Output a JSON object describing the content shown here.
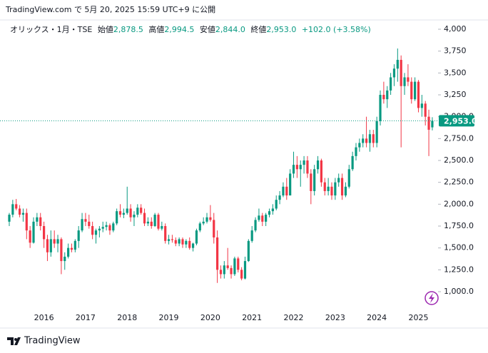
{
  "header": "TradingView.com で 5月 20, 2025 15:59 UTC+9 に公開",
  "footer": "TradingView",
  "chart_data": {
    "type": "candlestick",
    "legend": {
      "symbol": "オリックス・1月・TSE",
      "items": [
        {
          "label": "始値",
          "value": "2,878.5"
        },
        {
          "label": "高値",
          "value": "2,994.5"
        },
        {
          "label": "安値",
          "value": "2,844.0"
        },
        {
          "label": "終値",
          "value": "2,953.0"
        }
      ],
      "change": "+102.0 (+3.58%)"
    },
    "up_color": "#089981",
    "down_color": "#f23645",
    "last_price": {
      "value": 2953,
      "label": "2,953.0"
    },
    "ylim": [
      700,
      4100
    ],
    "yticks": [
      {
        "value": 1000,
        "label": "1,000.0"
      },
      {
        "value": 1250,
        "label": "1,250.0"
      },
      {
        "value": 1500,
        "label": "1,500.0"
      },
      {
        "value": 1750,
        "label": "1,750.0"
      },
      {
        "value": 2000,
        "label": "2,000.0"
      },
      {
        "value": 2250,
        "label": "2,250.0"
      },
      {
        "value": 2500,
        "label": "2,500.0"
      },
      {
        "value": 2750,
        "label": "2,750.0"
      },
      {
        "value": 3000,
        "label": "3,000.0"
      },
      {
        "value": 3250,
        "label": "3,250"
      },
      {
        "value": 3500,
        "label": "3,500"
      },
      {
        "value": 3750,
        "label": "3,750"
      },
      {
        "value": 4000,
        "label": "4,000"
      }
    ],
    "categories": [
      null,
      null,
      null,
      null,
      null,
      null,
      null,
      null,
      null,
      null,
      "2016",
      null,
      null,
      null,
      null,
      null,
      null,
      null,
      null,
      null,
      null,
      null,
      "2017",
      null,
      null,
      null,
      null,
      null,
      null,
      null,
      null,
      null,
      null,
      null,
      "2018",
      null,
      null,
      null,
      null,
      null,
      null,
      null,
      null,
      null,
      null,
      null,
      "2019",
      null,
      null,
      null,
      null,
      null,
      null,
      null,
      null,
      null,
      null,
      null,
      "2020",
      null,
      null,
      null,
      null,
      null,
      null,
      null,
      null,
      null,
      null,
      null,
      "2021",
      null,
      null,
      null,
      null,
      null,
      null,
      null,
      null,
      null,
      null,
      null,
      "2022",
      null,
      null,
      null,
      null,
      null,
      null,
      null,
      null,
      null,
      null,
      null,
      "2023",
      null,
      null,
      null,
      null,
      null,
      null,
      null,
      null,
      null,
      null,
      null,
      "2024",
      null,
      null,
      null,
      null,
      null,
      null,
      null,
      null,
      null,
      null,
      null,
      "2025",
      null,
      null,
      null,
      null
    ],
    "ohlc": [
      [
        1800,
        1900,
        1750,
        1880
      ],
      [
        1880,
        2050,
        1850,
        2000
      ],
      [
        2000,
        2060,
        1930,
        1950
      ],
      [
        1950,
        1990,
        1850,
        1880
      ],
      [
        1880,
        1950,
        1800,
        1900
      ],
      [
        1900,
        1950,
        1600,
        1700
      ],
      [
        1700,
        1750,
        1500,
        1560
      ],
      [
        1560,
        1850,
        1550,
        1800
      ],
      [
        1800,
        1900,
        1750,
        1850
      ],
      [
        1850,
        1900,
        1700,
        1750
      ],
      [
        1750,
        1800,
        1500,
        1600
      ],
      [
        1600,
        1650,
        1350,
        1450
      ],
      [
        1450,
        1700,
        1400,
        1600
      ],
      [
        1600,
        1700,
        1500,
        1550
      ],
      [
        1550,
        1650,
        1450,
        1600
      ],
      [
        1600,
        1620,
        1200,
        1350
      ],
      [
        1350,
        1450,
        1250,
        1400
      ],
      [
        1400,
        1550,
        1380,
        1500
      ],
      [
        1500,
        1550,
        1450,
        1480
      ],
      [
        1480,
        1600,
        1450,
        1580
      ],
      [
        1580,
        1750,
        1500,
        1700
      ],
      [
        1700,
        1900,
        1680,
        1830
      ],
      [
        1830,
        1900,
        1750,
        1800
      ],
      [
        1800,
        1880,
        1720,
        1750
      ],
      [
        1750,
        1800,
        1600,
        1650
      ],
      [
        1650,
        1720,
        1550,
        1700
      ],
      [
        1700,
        1750,
        1620,
        1720
      ],
      [
        1720,
        1800,
        1680,
        1740
      ],
      [
        1740,
        1800,
        1700,
        1760
      ],
      [
        1760,
        1780,
        1650,
        1700
      ],
      [
        1700,
        1800,
        1680,
        1780
      ],
      [
        1780,
        1950,
        1760,
        1920
      ],
      [
        1920,
        2000,
        1850,
        1880
      ],
      [
        1880,
        1950,
        1840,
        1900
      ],
      [
        1900,
        2200,
        1880,
        1950
      ],
      [
        1950,
        2000,
        1800,
        1850
      ],
      [
        1850,
        1920,
        1750,
        1880
      ],
      [
        1880,
        2000,
        1850,
        1960
      ],
      [
        1960,
        2000,
        1880,
        1900
      ],
      [
        1900,
        1950,
        1750,
        1780
      ],
      [
        1780,
        1850,
        1750,
        1800
      ],
      [
        1800,
        1850,
        1720,
        1750
      ],
      [
        1750,
        1900,
        1740,
        1880
      ],
      [
        1880,
        1900,
        1700,
        1720
      ],
      [
        1720,
        1800,
        1700,
        1750
      ],
      [
        1750,
        1780,
        1550,
        1580
      ],
      [
        1580,
        1650,
        1540,
        1600
      ],
      [
        1600,
        1650,
        1560,
        1590
      ],
      [
        1590,
        1620,
        1520,
        1550
      ],
      [
        1550,
        1620,
        1520,
        1600
      ],
      [
        1600,
        1620,
        1500,
        1540
      ],
      [
        1540,
        1600,
        1500,
        1580
      ],
      [
        1580,
        1620,
        1480,
        1500
      ],
      [
        1500,
        1560,
        1460,
        1550
      ],
      [
        1550,
        1720,
        1530,
        1700
      ],
      [
        1700,
        1800,
        1680,
        1780
      ],
      [
        1780,
        1850,
        1760,
        1800
      ],
      [
        1800,
        1900,
        1780,
        1850
      ],
      [
        1850,
        1990,
        1800,
        1820
      ],
      [
        1820,
        1900,
        1550,
        1620
      ],
      [
        1620,
        1700,
        1100,
        1250
      ],
      [
        1250,
        1300,
        1150,
        1200
      ],
      [
        1200,
        1350,
        1150,
        1300
      ],
      [
        1300,
        1500,
        1250,
        1270
      ],
      [
        1270,
        1300,
        1150,
        1200
      ],
      [
        1200,
        1400,
        1180,
        1380
      ],
      [
        1380,
        1400,
        1220,
        1250
      ],
      [
        1250,
        1280,
        1130,
        1150
      ],
      [
        1150,
        1400,
        1140,
        1350
      ],
      [
        1350,
        1600,
        1340,
        1580
      ],
      [
        1580,
        1750,
        1560,
        1700
      ],
      [
        1700,
        1850,
        1680,
        1820
      ],
      [
        1820,
        1950,
        1800,
        1870
      ],
      [
        1870,
        1900,
        1750,
        1800
      ],
      [
        1800,
        1900,
        1750,
        1880
      ],
      [
        1880,
        1950,
        1850,
        1920
      ],
      [
        1920,
        2000,
        1880,
        1950
      ],
      [
        1950,
        2100,
        1930,
        2050
      ],
      [
        2050,
        2150,
        2000,
        2100
      ],
      [
        2100,
        2250,
        2080,
        2200
      ],
      [
        2200,
        2300,
        2050,
        2100
      ],
      [
        2100,
        2400,
        2100,
        2350
      ],
      [
        2350,
        2600,
        2300,
        2450
      ],
      [
        2450,
        2550,
        2300,
        2400
      ],
      [
        2400,
        2500,
        2200,
        2450
      ],
      [
        2450,
        2550,
        2350,
        2500
      ],
      [
        2500,
        2550,
        2300,
        2350
      ],
      [
        2350,
        2400,
        2000,
        2150
      ],
      [
        2150,
        2450,
        2100,
        2400
      ],
      [
        2400,
        2550,
        2350,
        2500
      ],
      [
        2500,
        2520,
        2200,
        2250
      ],
      [
        2250,
        2300,
        2100,
        2150
      ],
      [
        2150,
        2300,
        2100,
        2200
      ],
      [
        2200,
        2250,
        2050,
        2100
      ],
      [
        2100,
        2300,
        2050,
        2250
      ],
      [
        2250,
        2350,
        2200,
        2300
      ],
      [
        2300,
        2350,
        2050,
        2100
      ],
      [
        2100,
        2250,
        2080,
        2200
      ],
      [
        2200,
        2450,
        2180,
        2400
      ],
      [
        2400,
        2600,
        2380,
        2550
      ],
      [
        2550,
        2700,
        2500,
        2650
      ],
      [
        2650,
        2750,
        2600,
        2700
      ],
      [
        2700,
        2800,
        2650,
        2750
      ],
      [
        2750,
        3000,
        2650,
        2700
      ],
      [
        2700,
        2850,
        2600,
        2800
      ],
      [
        2800,
        2850,
        2650,
        2700
      ],
      [
        2700,
        3000,
        2650,
        2950
      ],
      [
        2950,
        3300,
        2900,
        3250
      ],
      [
        3250,
        3400,
        3150,
        3200
      ],
      [
        3200,
        3350,
        3100,
        3300
      ],
      [
        3300,
        3500,
        3250,
        3450
      ],
      [
        3450,
        3600,
        3350,
        3550
      ],
      [
        3550,
        3780,
        3400,
        3650
      ],
      [
        3650,
        3700,
        2650,
        3350
      ],
      [
        3350,
        3500,
        3250,
        3450
      ],
      [
        3450,
        3600,
        3350,
        3400
      ],
      [
        3400,
        3450,
        3150,
        3200
      ],
      [
        3200,
        3450,
        3180,
        3400
      ],
      [
        3400,
        3420,
        3050,
        3100
      ],
      [
        3100,
        3250,
        3000,
        3150
      ],
      [
        3150,
        3180,
        2900,
        3000
      ],
      [
        3000,
        3080,
        2550,
        2851
      ],
      [
        2878.5,
        2994.5,
        2844,
        2953
      ]
    ]
  }
}
